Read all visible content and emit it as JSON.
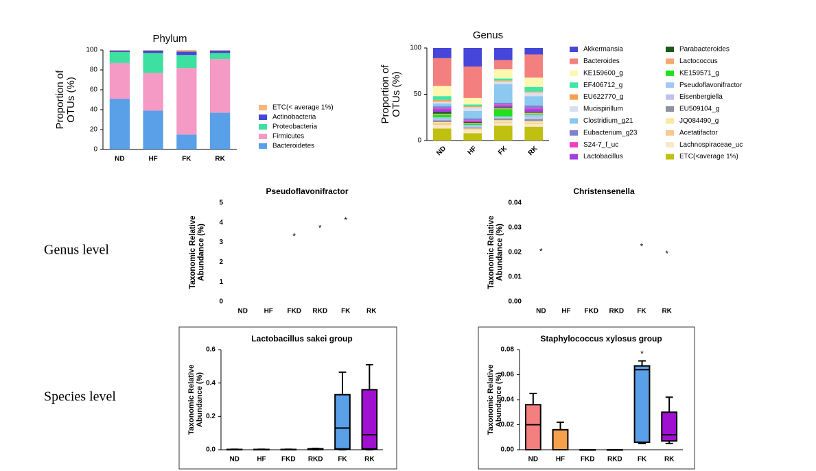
{
  "row_labels": [
    "Genus level",
    "Species level"
  ],
  "chart_data": [
    {
      "type": "stacked_bar",
      "title": "Phylum",
      "y_label": [
        "Proportion of",
        "OTUs (%)"
      ],
      "categories": [
        "ND",
        "HF",
        "FK",
        "RK"
      ],
      "ylim": [
        0,
        100
      ],
      "yticks": [
        0,
        20,
        40,
        60,
        80,
        100
      ],
      "series": [
        {
          "name": "ETC(< average 1%)",
          "color": "#f5b87a",
          "values": [
            0.5,
            0.5,
            1.5,
            0.5
          ]
        },
        {
          "name": "Actinobacteria",
          "color": "#4646d8",
          "values": [
            1.5,
            2.5,
            3.5,
            2.5
          ]
        },
        {
          "name": "Proteobacteria",
          "color": "#3de0a0",
          "values": [
            11,
            20,
            13,
            6
          ]
        },
        {
          "name": "Firmicutes",
          "color": "#f49ac4",
          "values": [
            36,
            38,
            67,
            54
          ]
        },
        {
          "name": "Bacteroidetes",
          "color": "#5aa0e8",
          "values": [
            51,
            39,
            15,
            37
          ]
        }
      ]
    },
    {
      "type": "stacked_bar",
      "title": "Genus",
      "y_label": [
        "Proportion of",
        "OTUs (%)"
      ],
      "categories": [
        "ND",
        "HF",
        "FK",
        "RK"
      ],
      "ylim": [
        0,
        100
      ],
      "yticks": [
        0,
        50,
        100
      ],
      "series": [
        {
          "name": "Akkermansia",
          "color": "#4646d8",
          "values": [
            11,
            20,
            13,
            7
          ]
        },
        {
          "name": "Bacteroides",
          "color": "#f47f7f",
          "values": [
            30,
            34,
            10,
            25
          ]
        },
        {
          "name": "KE159600_g",
          "color": "#fdf8b0",
          "values": [
            11,
            7,
            10,
            10
          ]
        },
        {
          "name": "EF406712_g",
          "color": "#3ee6a8",
          "values": [
            4,
            2,
            2,
            5
          ]
        },
        {
          "name": "EU622770_g",
          "color": "#f7a04c",
          "values": [
            2,
            1,
            1,
            1
          ]
        },
        {
          "name": "Mucispirillum",
          "color": "#d8e0f0",
          "values": [
            2,
            4,
            3,
            4
          ]
        },
        {
          "name": "Clostridium_g21",
          "color": "#8cc8f0",
          "values": [
            3,
            8,
            20,
            10
          ]
        },
        {
          "name": "Eubacterium_g23",
          "color": "#8080d0",
          "values": [
            2,
            2,
            2,
            3
          ]
        },
        {
          "name": "S24-7_f_uc",
          "color": "#f040c0",
          "values": [
            1,
            1,
            1,
            1
          ]
        },
        {
          "name": "Lactobacillus",
          "color": "#a040e0",
          "values": [
            3,
            1,
            2,
            3
          ]
        },
        {
          "name": "Parabacteroides",
          "color": "#1a5a1a",
          "values": [
            2,
            1,
            1,
            1
          ]
        },
        {
          "name": "Lactococcus",
          "color": "#f5a870",
          "values": [
            1,
            1,
            1,
            1
          ]
        },
        {
          "name": "KE159571_g",
          "color": "#20e020",
          "values": [
            3,
            1,
            8,
            1
          ]
        },
        {
          "name": "Pseudoflavonifractor",
          "color": "#a0c8f8",
          "values": [
            2,
            2,
            1,
            3
          ]
        },
        {
          "name": "Eisenbergiella",
          "color": "#c0c0f0",
          "values": [
            1,
            1,
            1,
            2
          ]
        },
        {
          "name": "EU509104_g",
          "color": "#9090a0",
          "values": [
            2,
            1,
            2,
            2
          ]
        },
        {
          "name": "JQ084490_g",
          "color": "#f8e8a0",
          "values": [
            1,
            1,
            2,
            2
          ]
        },
        {
          "name": "Acetatifactor",
          "color": "#f8c890",
          "values": [
            2,
            1,
            1,
            1
          ]
        },
        {
          "name": "Lachnospiraceae_uc",
          "color": "#f8e8c8",
          "values": [
            4,
            3,
            3,
            3
          ]
        },
        {
          "name": "ETC(<average 1%)",
          "color": "#c0c010",
          "values": [
            13,
            8,
            16,
            15
          ]
        }
      ]
    },
    {
      "type": "scatter",
      "title": "Pseudoflavonifractor",
      "y_label": [
        "Taxonomic Relative",
        "Abundance (%)"
      ],
      "categories": [
        "ND",
        "HF",
        "FKD",
        "RKD",
        "FK",
        "RK"
      ],
      "ylim": [
        0,
        5
      ],
      "yticks": [
        0,
        1,
        2,
        3,
        4,
        5
      ],
      "marker": "*",
      "values": [
        null,
        null,
        3.4,
        3.8,
        4.2,
        null
      ]
    },
    {
      "type": "scatter",
      "title": "Christensenella",
      "y_label": [
        "Taxonomic Relative",
        "Abundance (%)"
      ],
      "categories": [
        "ND",
        "HF",
        "FKD",
        "RKD",
        "FK",
        "RK"
      ],
      "ylim": [
        0,
        0.04
      ],
      "yticks": [
        {
          "value": 0,
          "label": "0.00"
        },
        0.01,
        0.02,
        0.03,
        0.04
      ],
      "marker": "*",
      "values": [
        0.021,
        null,
        null,
        null,
        0.023,
        0.02
      ]
    },
    {
      "type": "box",
      "title": "Lactobacillus sakei group",
      "y_label": [
        "Taxonomic Relative",
        "Abundance (%)"
      ],
      "categories": [
        "ND",
        "HF",
        "FKD",
        "RKD",
        "FK",
        "RK"
      ],
      "ylim": [
        0,
        0.6
      ],
      "yticks": [
        {
          "value": 0,
          "label": "0.0"
        },
        0.2,
        0.4,
        0.6
      ],
      "boxes": [
        {
          "min": 0,
          "q1": 0,
          "median": 0,
          "q3": 0.002,
          "max": 0.003,
          "color": "#ffffff"
        },
        {
          "min": 0,
          "q1": 0,
          "median": 0,
          "q3": 0.002,
          "max": 0.003,
          "color": "#ffffff"
        },
        {
          "min": 0,
          "q1": 0,
          "median": 0,
          "q3": 0.002,
          "max": 0.003,
          "color": "#ffffff"
        },
        {
          "min": 0,
          "q1": 0.001,
          "median": 0.003,
          "q3": 0.006,
          "max": 0.008,
          "color": "#ffffff"
        },
        {
          "min": 0,
          "q1": 0.005,
          "median": 0.13,
          "q3": 0.33,
          "max": 0.465,
          "color": "#5aa0e8"
        },
        {
          "min": 0,
          "q1": 0.005,
          "median": 0.09,
          "q3": 0.36,
          "max": 0.51,
          "color": "#a010d0"
        }
      ]
    },
    {
      "type": "box",
      "title": "Staphylococcus xylosus group",
      "y_label": [
        "Taxonomic Relative",
        "Abundance (%)"
      ],
      "categories": [
        "ND",
        "HF",
        "FKD",
        "RKD",
        "FK",
        "RK"
      ],
      "ylim": [
        0,
        0.08
      ],
      "yticks": [
        {
          "value": 0,
          "label": "0.00"
        },
        0.02,
        0.04,
        0.06,
        0.08
      ],
      "boxes": [
        {
          "min": 0,
          "q1": 0,
          "median": 0.02,
          "q3": 0.036,
          "max": 0.045,
          "color": "#f47f7f"
        },
        {
          "min": 0,
          "q1": 0,
          "median": 0,
          "q3": 0.016,
          "max": 0.022,
          "color": "#f7a04c"
        },
        {
          "min": 0,
          "q1": 0,
          "median": 0,
          "q3": 0,
          "max": 0,
          "color": "#ffffff"
        },
        {
          "min": 0,
          "q1": 0,
          "median": 0,
          "q3": 0,
          "max": 0,
          "color": "#ffffff"
        },
        {
          "min": 0.005,
          "q1": 0.006,
          "median": 0.064,
          "q3": 0.067,
          "max": 0.071,
          "color": "#5aa0e8"
        },
        {
          "min": 0.005,
          "q1": 0.007,
          "median": 0.012,
          "q3": 0.03,
          "max": 0.042,
          "color": "#a010d0"
        }
      ],
      "marker": "*",
      "values": [
        null,
        null,
        null,
        null,
        0.078,
        null
      ]
    }
  ]
}
